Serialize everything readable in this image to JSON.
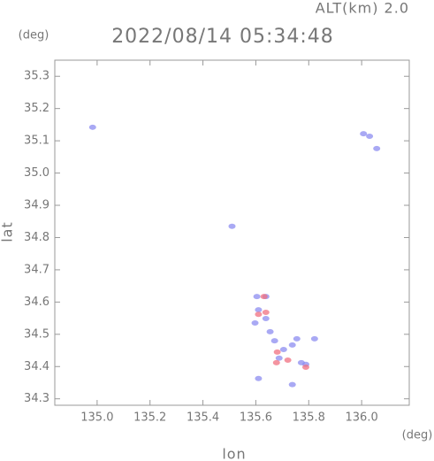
{
  "chart_data": {
    "type": "scatter",
    "title": "2022/08/14 05:34:48",
    "subtitle": "ALT(km) 2.0",
    "x_label": "lon",
    "y_label": "lat",
    "x_unit": "(deg)",
    "y_unit": "(deg)",
    "xlim": [
      134.84,
      136.18
    ],
    "ylim": [
      34.28,
      35.35
    ],
    "xticks": [
      {
        "value": 135,
        "label": "135.0"
      },
      135.2,
      135.4,
      135.6,
      135.8,
      {
        "value": 136,
        "label": "136.0"
      }
    ],
    "yticks": [
      34.3,
      34.4,
      34.5,
      34.6,
      34.7,
      34.8,
      34.9,
      {
        "value": 35,
        "label": "35.0"
      },
      35.1,
      35.2,
      35.3
    ],
    "series": [
      {
        "color": "#8c8cf0",
        "x": [
          134.983,
          136.007,
          136.03,
          136.057,
          135.51,
          135.604,
          135.638,
          135.61,
          135.638,
          135.597,
          135.654,
          135.671,
          135.705,
          135.738,
          135.755,
          135.822,
          135.688,
          135.772,
          135.789,
          135.738,
          135.61
        ],
        "y": [
          35.142,
          35.122,
          35.114,
          35.076,
          34.835,
          34.617,
          34.617,
          34.576,
          34.549,
          34.535,
          34.508,
          34.48,
          34.453,
          34.467,
          34.486,
          34.486,
          34.426,
          34.412,
          34.407,
          34.344,
          34.363
        ]
      },
      {
        "color": "#f07080",
        "x": [
          135.61,
          135.638,
          135.631,
          135.681,
          135.721,
          135.678,
          135.789
        ],
        "y": [
          34.562,
          34.568,
          34.617,
          34.445,
          34.42,
          34.412,
          34.398
        ]
      }
    ]
  }
}
